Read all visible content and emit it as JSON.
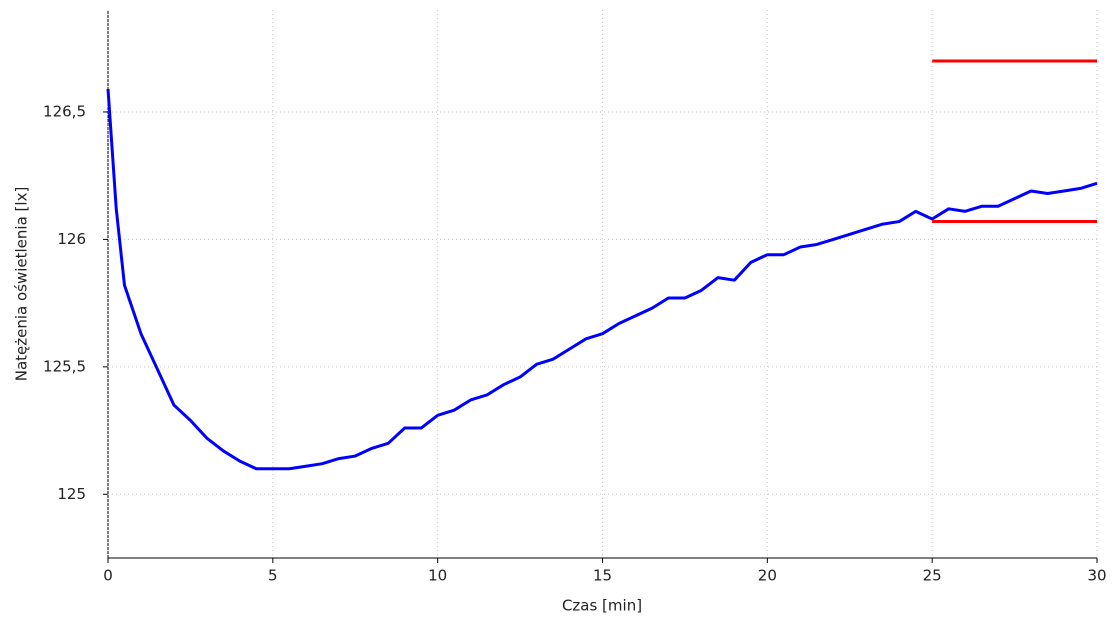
{
  "chart_data": {
    "type": "line",
    "x_label": "Czas [min]",
    "y_label": "Natężenia oświetlenia [lx]",
    "xlim": [
      0,
      30
    ],
    "xticks": [
      0,
      5,
      10,
      15,
      20,
      25,
      30
    ],
    "ylim": [
      124.75,
      126.9
    ],
    "yticks": [
      125,
      {
        "value": 125.5,
        "label": "125,5"
      },
      126,
      {
        "value": 126.5,
        "label": "126,5"
      }
    ],
    "grid": true,
    "series": [
      {
        "color": "#0000ff",
        "x": [
          0,
          0.25,
          0.5,
          1,
          1.5,
          2,
          2.5,
          3,
          3.5,
          4,
          4.5,
          5,
          5.5,
          6,
          6.5,
          7,
          7.5,
          8,
          8.5,
          9,
          9.5,
          10,
          10.5,
          11,
          11.5,
          12,
          12.5,
          13,
          13.5,
          14,
          14.5,
          15,
          15.5,
          16,
          16.5,
          17,
          17.5,
          18,
          18.5,
          19,
          19.5,
          20,
          20.5,
          21,
          21.5,
          22,
          22.5,
          23,
          23.5,
          24,
          24.5,
          25,
          25.5,
          26,
          26.5,
          27,
          27.5,
          28,
          28.5,
          29,
          29.5,
          30
        ],
        "values": [
          126.59,
          126.12,
          125.82,
          125.63,
          125.49,
          125.35,
          125.29,
          125.22,
          125.17,
          125.13,
          125.1,
          125.1,
          125.1,
          125.11,
          125.12,
          125.14,
          125.15,
          125.18,
          125.2,
          125.26,
          125.26,
          125.31,
          125.33,
          125.37,
          125.39,
          125.43,
          125.46,
          125.51,
          125.53,
          125.57,
          125.61,
          125.63,
          125.67,
          125.7,
          125.73,
          125.77,
          125.77,
          125.8,
          125.85,
          125.84,
          125.91,
          125.94,
          125.94,
          125.97,
          125.98,
          126.0,
          126.02,
          126.04,
          126.06,
          126.07,
          126.11,
          126.08,
          126.12,
          126.11,
          126.13,
          126.13,
          126.16,
          126.19,
          126.18,
          126.19,
          126.2,
          126.22
        ]
      },
      {
        "color": "#ff0000",
        "x": [
          25,
          30
        ],
        "values": [
          126.7,
          126.7
        ]
      },
      {
        "color": "#ff0000",
        "x": [
          25,
          30
        ],
        "values": [
          126.07,
          126.07
        ]
      }
    ]
  }
}
